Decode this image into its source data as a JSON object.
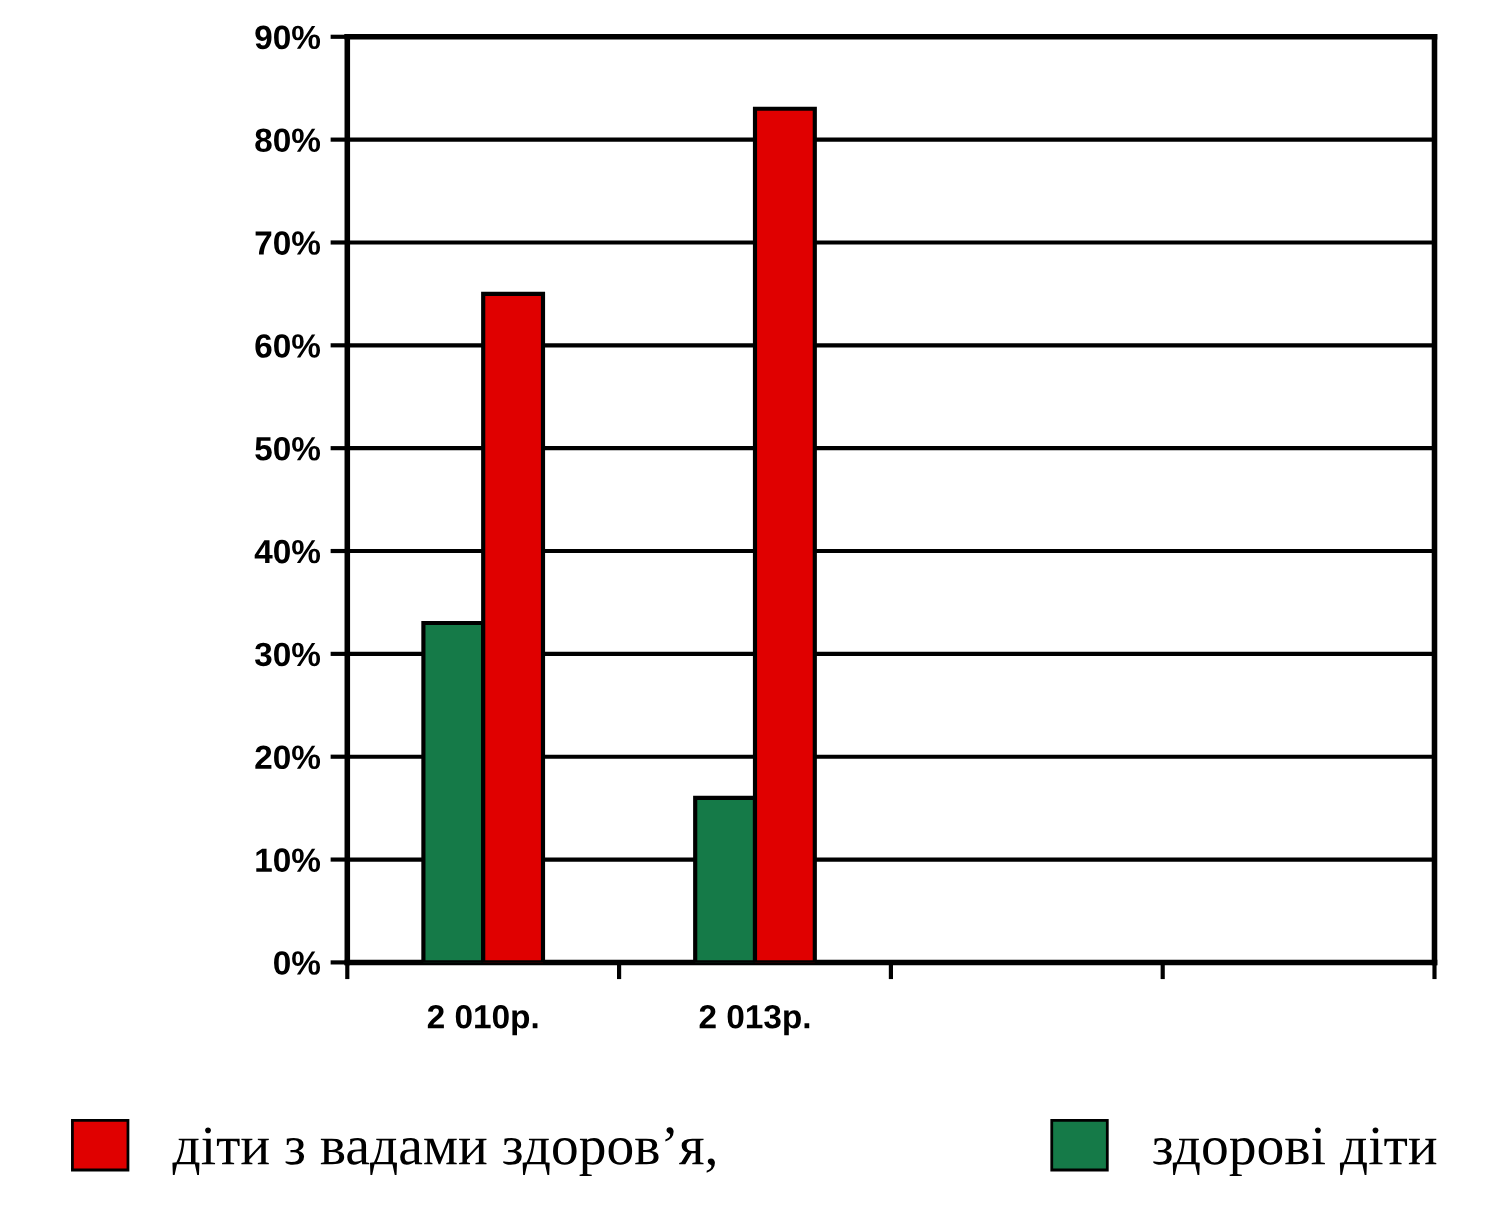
{
  "chart_data": {
    "type": "bar",
    "categories": [
      "2 010р.",
      "2 013р.",
      null,
      null
    ],
    "series": [
      {
        "name": "здорові діти",
        "color": "#157a48",
        "values": [
          33,
          16,
          null,
          null
        ]
      },
      {
        "name": "діти з вадами здоров’я,",
        "color": "#e00000",
        "values": [
          65,
          83,
          null,
          null
        ]
      }
    ],
    "ylim": [
      0,
      90
    ],
    "yticks": [
      {
        "value": 0,
        "label": "0%"
      },
      {
        "value": 10,
        "label": "10%"
      },
      {
        "value": 20,
        "label": "20%"
      },
      {
        "value": 30,
        "label": "30%"
      },
      {
        "value": 40,
        "label": "40%"
      },
      {
        "value": 50,
        "label": "50%"
      },
      {
        "value": 60,
        "label": "60%"
      },
      {
        "value": 70,
        "label": "70%"
      },
      {
        "value": 80,
        "label": "80%"
      },
      {
        "value": 90,
        "label": "90%"
      }
    ],
    "grid": "y",
    "legend": "bottom"
  }
}
